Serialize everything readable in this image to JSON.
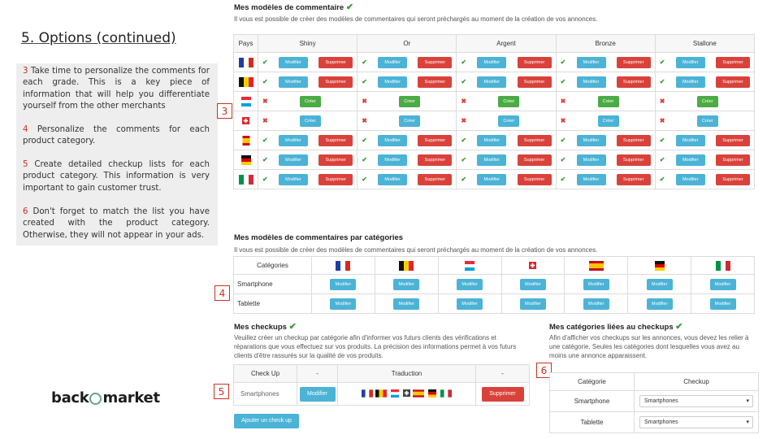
{
  "slide": {
    "number": "5.",
    "title": "Options (continued)"
  },
  "notes": [
    {
      "n": "3",
      "text": "Take time to personalize the comments for each grade. This is a key piece of information that will help you differentiate yourself from the other merchants"
    },
    {
      "n": "4",
      "text": "Personalize the comments for each product category."
    },
    {
      "n": "5",
      "text": "Create detailed checkup lists for each product category. This information is very important to gain customer trust."
    },
    {
      "n": "6",
      "text": "Don't forget to match the list you have created with the product category. Otherwise, they will not appear in your ads."
    }
  ],
  "markers": {
    "m3": "3",
    "m4": "4",
    "m5": "5",
    "m6": "6"
  },
  "logo": {
    "part1": "back",
    "part2": "market"
  },
  "models": {
    "title": "Mes modèles de commentaire",
    "subtitle": "Il vous est possible de créer des modèles de commentaires qui seront préchargés au moment de la création de vos annonces.",
    "col_country": "Pays",
    "grades": [
      "Shiny",
      "Or",
      "Argent",
      "Bronze",
      "Stallone"
    ],
    "modify": "Modifier",
    "delete": "Supprimer",
    "create": "Créer"
  },
  "categories_models": {
    "title": "Mes modèles de commentaires par catégories",
    "subtitle": "Il vous est possible de créer des modèles de commentaires qui seront préchargés au moment de la création de vos annonces.",
    "col_categories": "Catégories",
    "rows": [
      "Smartphone",
      "Tablette"
    ],
    "modify": "Modifier"
  },
  "checkups": {
    "title": "Mes checkups",
    "subtitle": "Veuillez créer un checkup par catégorie afin d'informer vos futurs clients des vérifications et réparations que vous effectuez sur vos produits. La précision des informations permet à vos futurs clients d'être rassurés sur la qualité de vos produits.",
    "col_checkup": "Check Up",
    "col_dash1": "-",
    "col_translation": "Traduction",
    "col_dash2": "-",
    "row_name": "Smartphones",
    "modify": "Modifier",
    "delete": "Supprimer",
    "add": "Ajouter un check up"
  },
  "linked": {
    "title": "Mes catégories liées au checkups",
    "subtitle": "Afin d'afficher vos checkups sur les annonces, vous devez les relier à une catégorie. Seules les catégories dont lesquelles vous avez au moins une annonce apparaissent.",
    "col_category": "Catégorie",
    "col_checkup": "Checkup",
    "rows": [
      {
        "category": "Smartphone",
        "checkup": "Smartphones"
      },
      {
        "category": "Tablette",
        "checkup": "Smartphones"
      }
    ]
  },
  "colors": {
    "accent": "#c8321e",
    "blue": "#4bb3d6",
    "red": "#d9423a",
    "green": "#4bab44"
  }
}
